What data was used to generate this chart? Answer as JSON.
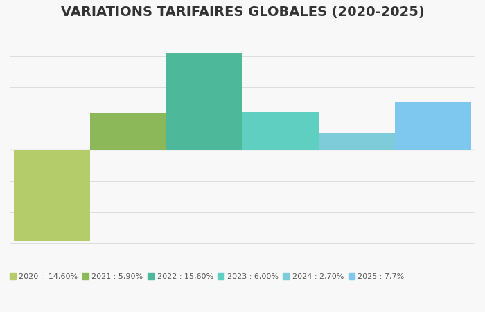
{
  "title": "VARIATIONS TARIFAIRES GLOBALES (2020-2025)",
  "years": [
    2020,
    2021,
    2022,
    2023,
    2024,
    2025
  ],
  "values": [
    -14.6,
    5.9,
    15.6,
    6.0,
    2.7,
    7.7
  ],
  "colors": [
    "#b5cc6a",
    "#8db85a",
    "#4db89a",
    "#5ecfc0",
    "#7ecbd9",
    "#7ec8f0"
  ],
  "legend_labels": [
    "2020 : -14,60%",
    "2021 : 5,90%",
    "2022 : 15,60%",
    "2023 : 6,00%",
    "2024 : 2,70%",
    "2025 : 7,7%"
  ],
  "background_color": "#f8f8f8",
  "ylim": [
    -17,
    18
  ],
  "title_fontsize": 14,
  "legend_fontsize": 8.0,
  "bar_width": 1.0,
  "clip_right": true
}
